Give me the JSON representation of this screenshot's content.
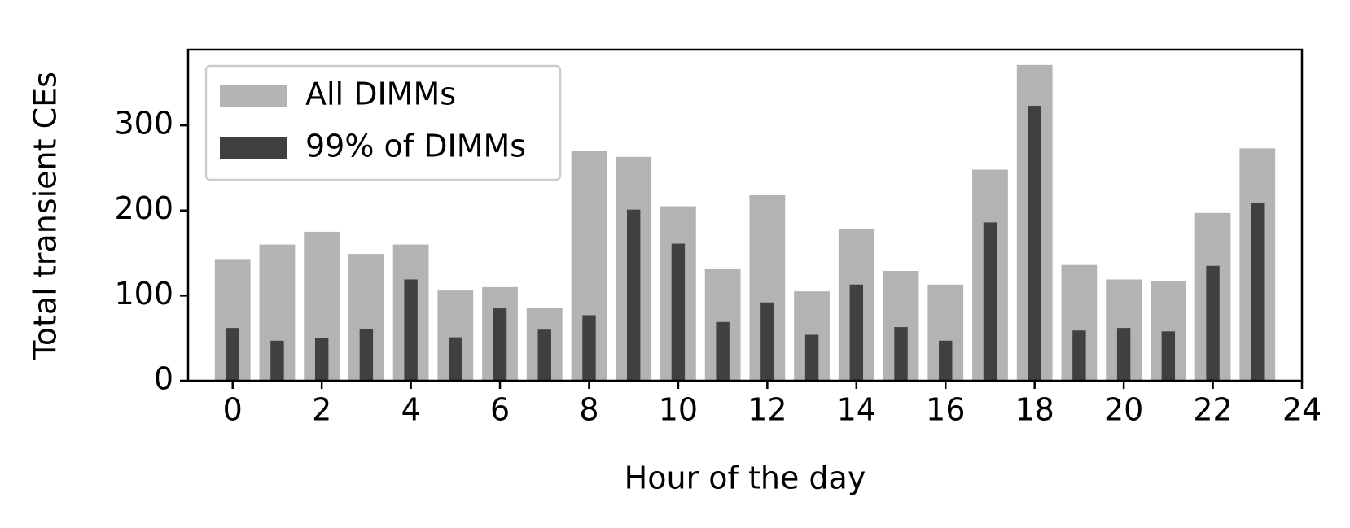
{
  "chart_data": {
    "type": "bar",
    "x_label": "Hour of the day",
    "y_label": "Total transient CEs",
    "x": [
      0,
      1,
      2,
      3,
      4,
      5,
      6,
      7,
      8,
      9,
      10,
      11,
      12,
      13,
      14,
      15,
      16,
      17,
      18,
      19,
      20,
      21,
      22,
      23
    ],
    "series": [
      {
        "name": "All DIMMs",
        "color": "#b3b3b3",
        "values": [
          143,
          160,
          175,
          149,
          160,
          106,
          110,
          86,
          270,
          263,
          205,
          131,
          218,
          105,
          178,
          129,
          113,
          248,
          371,
          136,
          119,
          117,
          197,
          273
        ]
      },
      {
        "name": "99% of DIMMs",
        "color": "#404040",
        "values": [
          62,
          47,
          50,
          61,
          119,
          51,
          85,
          60,
          77,
          201,
          161,
          69,
          92,
          54,
          113,
          63,
          47,
          186,
          323,
          59,
          62,
          58,
          135,
          209
        ]
      }
    ],
    "xlim": [
      -1,
      24
    ],
    "ylim": [
      0,
      389
    ],
    "xticks": [
      0,
      2,
      4,
      6,
      8,
      10,
      12,
      14,
      16,
      18,
      20,
      22,
      24
    ],
    "yticks": [
      0,
      100,
      200,
      300
    ],
    "legend": "upper left"
  }
}
